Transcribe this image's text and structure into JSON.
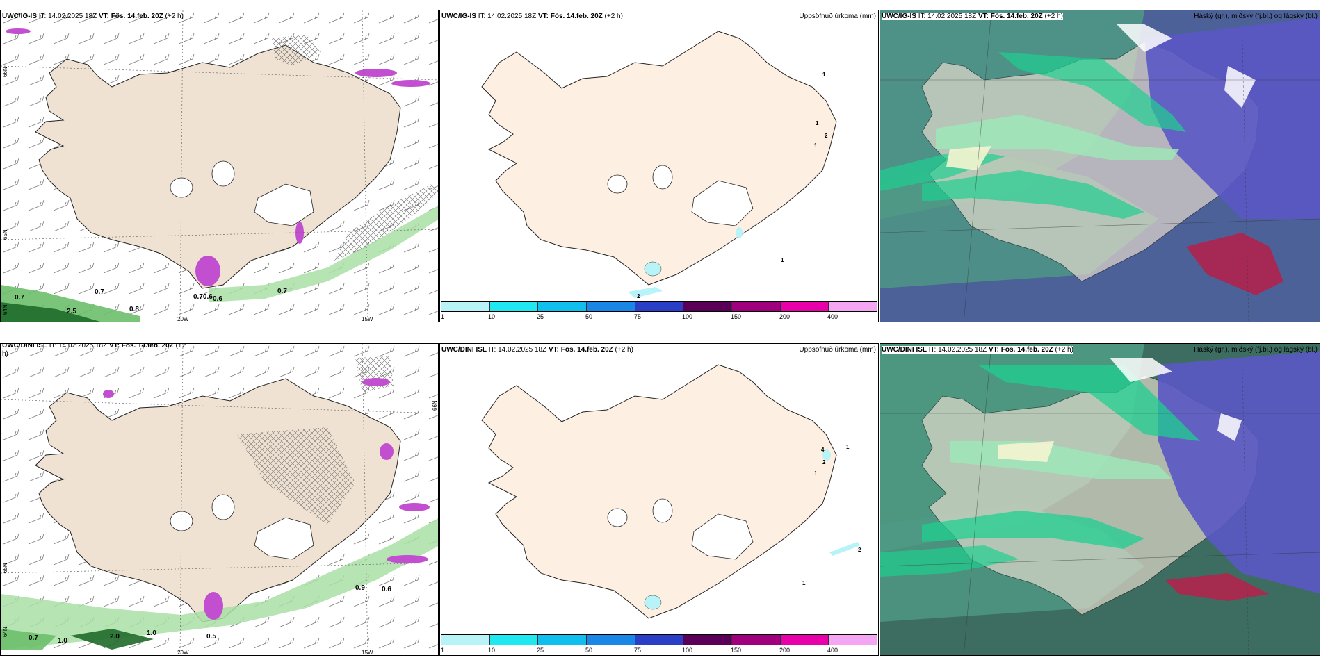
{
  "colors": {
    "land_wind": "#efe2d3",
    "land_precip": "#fdf0e3",
    "precip_legend": [
      "#b8f3f7",
      "#1fe8f0",
      "#11bfee",
      "#1a86e6",
      "#2a3fc6",
      "#5b0058",
      "#a0007e",
      "#e800a8",
      "#f4a6f2"
    ],
    "cloud_sea": "#3d6d60",
    "cloud_low": "#4f9a84",
    "cloud_high": "#5a58c4",
    "cloud_mid": "#9fe6b9",
    "cloud_red": "#b0244e"
  },
  "top": {
    "wind": {
      "title_model": "UWC/IG-IS",
      "title_it": " IT: 14.02.2025 18Z ",
      "title_vt": "VT: Fös. 14.feb. 20Z",
      "title_lead": " (+2 h)",
      "labels": [
        "0.7",
        "2.5",
        "0.7",
        "0.8",
        "0.70.6",
        "0.6",
        "0.7"
      ],
      "lon_ticks": [
        "20W",
        "15W"
      ],
      "lat_ticks": [
        "66N",
        "65N",
        "64N"
      ]
    },
    "precip": {
      "title_model": "UWC/IG-IS",
      "title_it": " IT: 14.02.2025 18Z ",
      "title_vt": "VT: Fös. 14.feb. 20Z",
      "title_lead": " (+2 h)",
      "title_right": "Uppsöfnuð úrkoma (mm)",
      "labels": [
        "1",
        "1",
        "2",
        "1",
        "1",
        "2"
      ],
      "legend_ticks": [
        "1",
        "10",
        "25",
        "50",
        "75",
        "100",
        "150",
        "200",
        "400"
      ]
    },
    "cloud": {
      "title_model": "UWC/IG-IS",
      "title_it": " IT: 14.02.2025 18Z ",
      "title_vt": "VT: Fös. 14.feb. 20Z",
      "title_lead": " (+2 h)",
      "title_right": "Háský (gr.), miðský (fj.bl.) og lágský (bl.)"
    }
  },
  "bottom": {
    "wind": {
      "title_model": "UWC/DINI ISL",
      "title_it": " IT: 14.02.2025 18Z ",
      "title_vt": "VT: Fös. 14.feb. 20Z",
      "title_lead": " (+2",
      "title_wrap": "h)",
      "labels": [
        "0.7",
        "1.0",
        "2.0",
        "1.0",
        "0.5",
        "0.9",
        "0.6"
      ],
      "lon_ticks": [
        "20W",
        "15W"
      ],
      "lat_ticks": [
        "66N",
        "65N",
        "64N"
      ]
    },
    "precip": {
      "title_model": "UWC/DINI ISL",
      "title_it": " IT: 14.02.2025 18Z ",
      "title_vt": "VT: Fös. 14.feb. 20Z",
      "title_lead": " (+2 h)",
      "title_right": "Uppsöfnuð úrkoma (mm)",
      "labels": [
        "4",
        "1",
        "2",
        "1",
        "2",
        "1"
      ],
      "legend_ticks": [
        "1",
        "10",
        "25",
        "50",
        "75",
        "100",
        "150",
        "200",
        "400"
      ]
    },
    "cloud": {
      "title_model": "UWC/DINI ISL",
      "title_it": " IT: 14.02.2025 18Z ",
      "title_vt": "VT: Fös. 14.feb. 20Z",
      "title_lead": " (+2 h)",
      "title_right": "Háský (gr.), miðský (fj.bl.) og lágský (bl.)"
    }
  }
}
